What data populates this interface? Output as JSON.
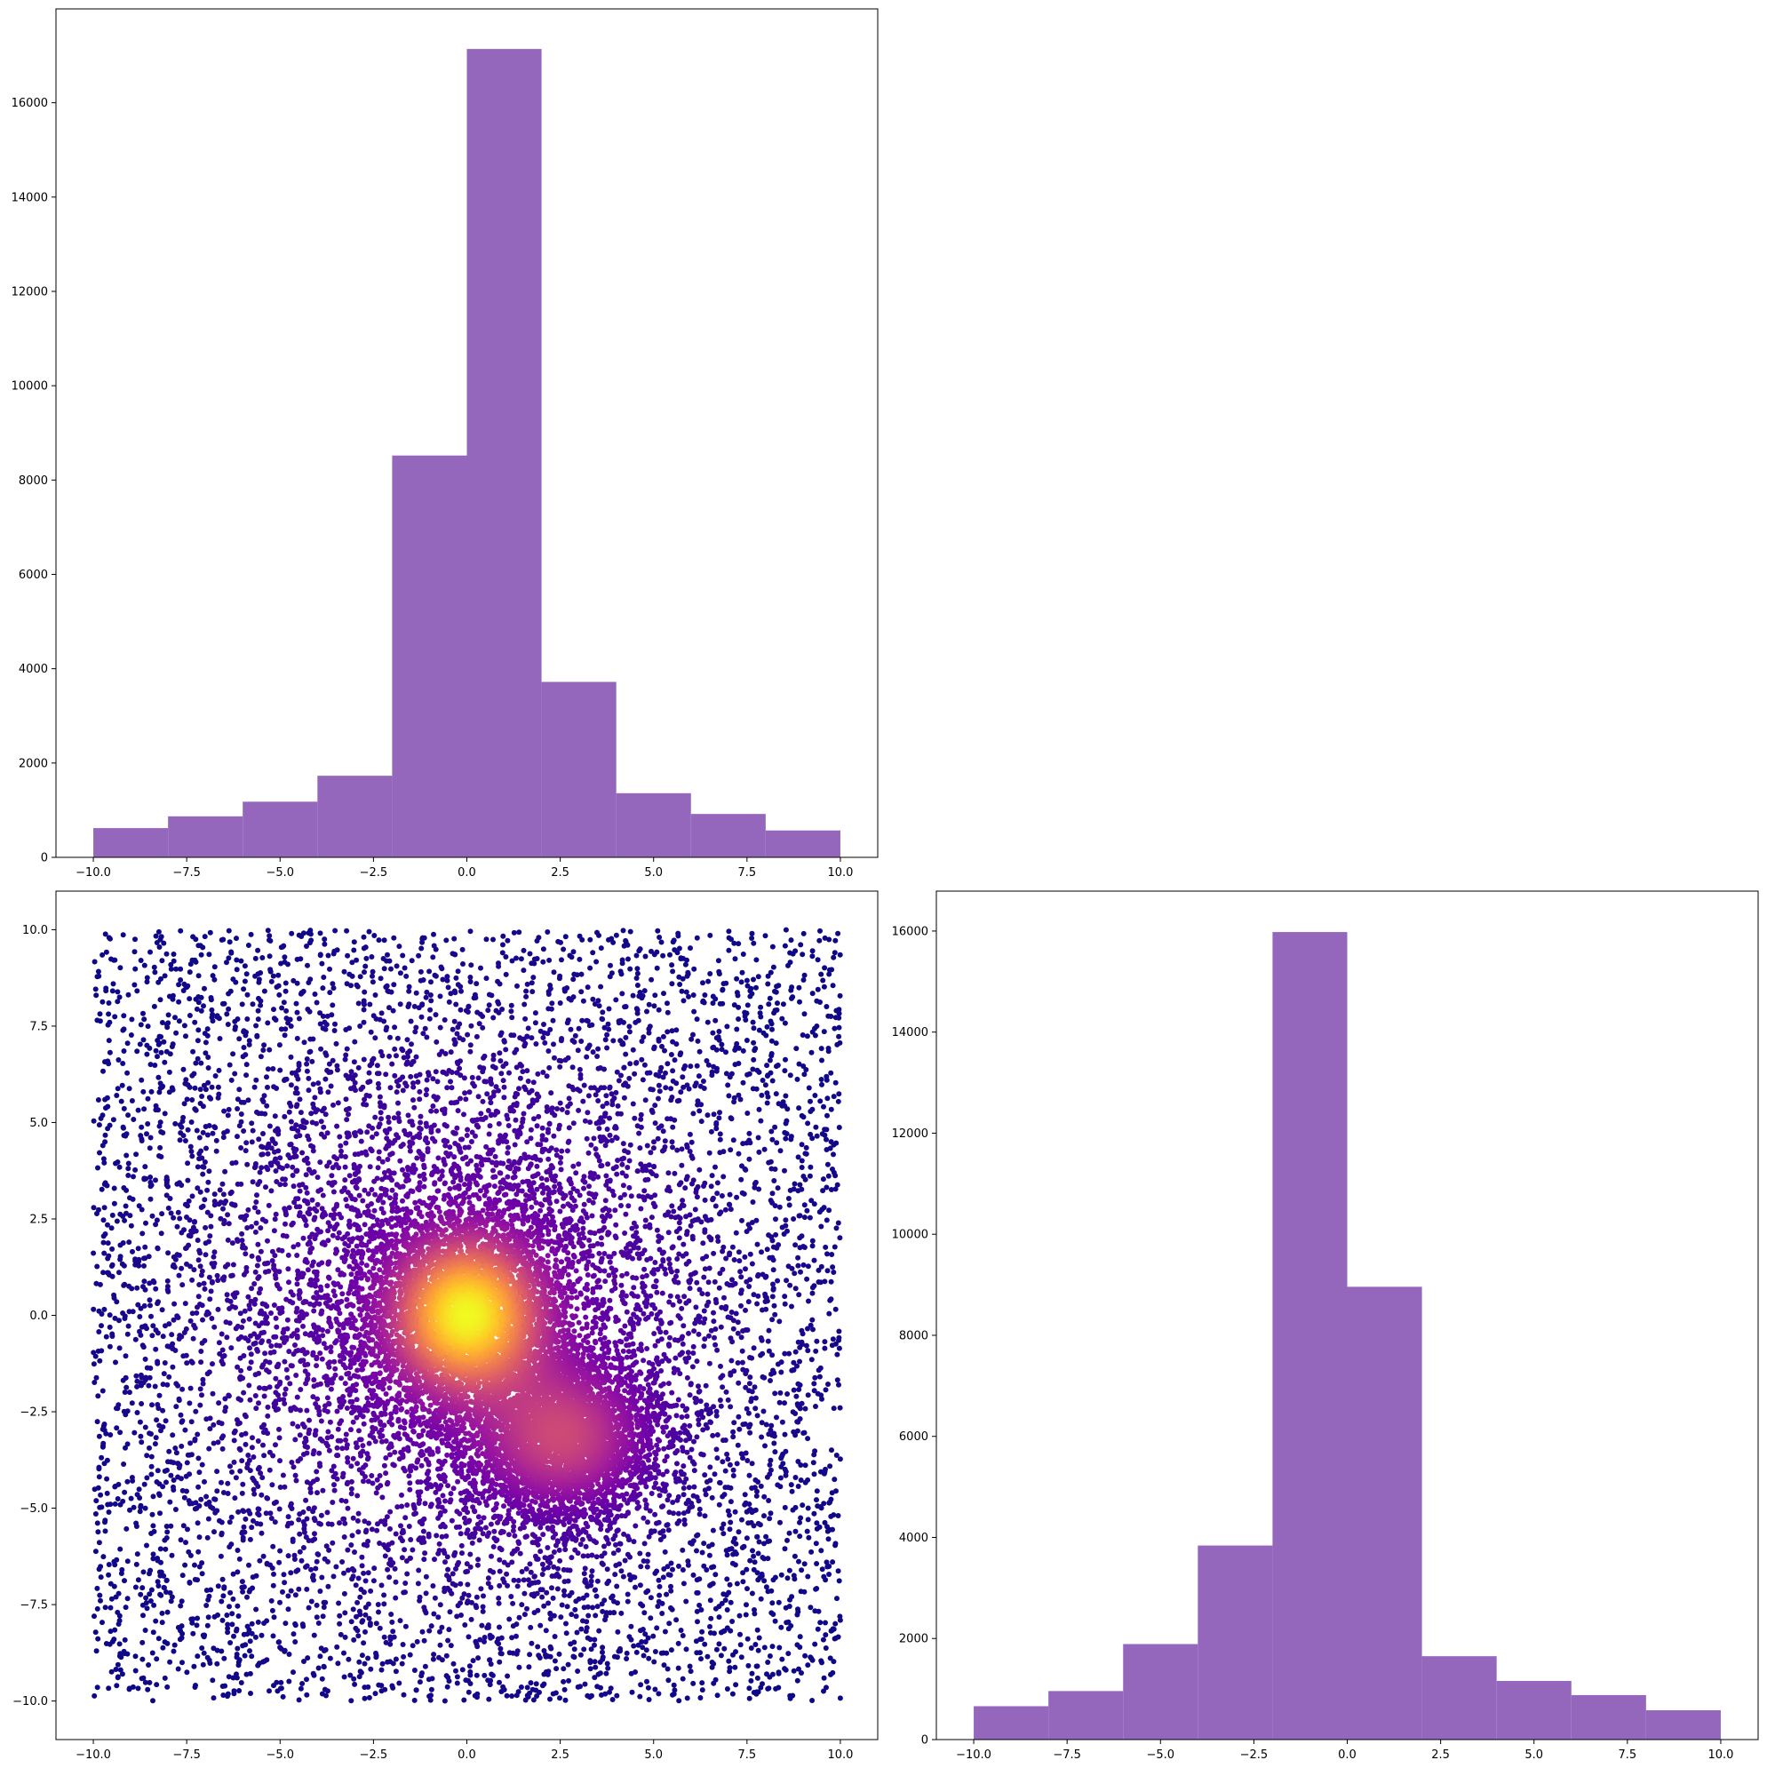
{
  "figure": {
    "layout": "corner plot, 2x2 grid, top-right panel empty"
  },
  "colors": {
    "hist_fill": "#9467bd",
    "scatter_colormap": [
      "#0d0887",
      "#46039f",
      "#7201a8",
      "#9c179e",
      "#bd3786",
      "#d8576b",
      "#ed7953",
      "#fb9f3a",
      "#fdca26",
      "#f0f921"
    ]
  },
  "chart_data": [
    {
      "name": "",
      "type": "bar",
      "panel": "top-left",
      "bin_edges": [
        -10,
        -8,
        -6,
        -4,
        -2,
        0,
        2,
        4,
        6,
        8,
        10
      ],
      "values": [
        620,
        870,
        1180,
        1730,
        8520,
        17140,
        3720,
        1360,
        920,
        570
      ],
      "xlim": [
        -11,
        11
      ],
      "ylim": [
        0,
        17990
      ],
      "xticks": [
        -10,
        -7.5,
        -5,
        -2.5,
        0,
        2.5,
        5,
        7.5,
        10
      ],
      "xtick_labels": [
        "−10.0",
        "−7.5",
        "−5.0",
        "−2.5",
        "0.0",
        "2.5",
        "5.0",
        "7.5",
        "10.0"
      ],
      "yticks": [
        0,
        2000,
        4000,
        6000,
        8000,
        10000,
        12000,
        14000,
        16000
      ],
      "ytick_labels": [
        "0",
        "2000",
        "4000",
        "6000",
        "8000",
        "10000",
        "12000",
        "14000",
        "16000"
      ],
      "title": "",
      "xlabel": "",
      "ylabel": "",
      "grid": false
    },
    {
      "name": "",
      "type": "scatter",
      "panel": "bottom-left",
      "description_of_generation": "",
      "components": [
        {
          "kind": "uniform",
          "count": 6000,
          "xrange": [
            -10,
            10
          ],
          "yrange": [
            -10,
            10
          ]
        },
        {
          "kind": "gaussian",
          "count": 4500,
          "center": [
            0,
            0
          ],
          "sigma": 1.4
        },
        {
          "kind": "gaussian",
          "count": 3500,
          "center": [
            2.6,
            -3.2
          ],
          "sigma": [
            1.3,
            1.1
          ]
        },
        {
          "kind": "gaussian",
          "count": 2500,
          "center": [
            0,
            0
          ],
          "sigma": 3.4
        }
      ],
      "color_by": "density",
      "colormap": "plasma",
      "marker_size": 3,
      "xlim": [
        -11,
        11
      ],
      "ylim": [
        -11,
        11
      ],
      "xticks": [
        -10,
        -7.5,
        -5,
        -2.5,
        0,
        2.5,
        5,
        7.5,
        10
      ],
      "xtick_labels": [
        "−10.0",
        "−7.5",
        "−5.0",
        "−2.5",
        "0.0",
        "2.5",
        "5.0",
        "7.5",
        "10.0"
      ],
      "yticks": [
        -10,
        -7.5,
        -5,
        -2.5,
        0,
        2.5,
        5,
        7.5,
        10
      ],
      "ytick_labels": [
        "−10.0",
        "−7.5",
        "−5.0",
        "−2.5",
        "0.0",
        "2.5",
        "5.0",
        "7.5",
        "10.0"
      ],
      "title": "",
      "xlabel": "",
      "ylabel": "",
      "grid": false
    },
    {
      "name": "",
      "type": "bar",
      "panel": "bottom-right",
      "bin_edges": [
        -10,
        -8,
        -6,
        -4,
        -2,
        0,
        2,
        4,
        6,
        8,
        10
      ],
      "values": [
        660,
        960,
        1890,
        3840,
        15980,
        8960,
        1650,
        1160,
        880,
        580
      ],
      "xlim": [
        -11,
        11
      ],
      "ylim": [
        0,
        16790
      ],
      "xticks": [
        -10,
        -7.5,
        -5,
        -2.5,
        0,
        2.5,
        5,
        7.5,
        10
      ],
      "xtick_labels": [
        "−10.0",
        "−7.5",
        "−5.0",
        "−2.5",
        "0.0",
        "2.5",
        "5.0",
        "7.5",
        "10.0"
      ],
      "yticks": [
        0,
        2000,
        4000,
        6000,
        8000,
        10000,
        12000,
        14000,
        16000
      ],
      "ytick_labels": [
        "0",
        "2000",
        "4000",
        "6000",
        "8000",
        "10000",
        "12000",
        "14000",
        "16000"
      ],
      "title": "",
      "xlabel": "",
      "ylabel": "",
      "grid": false
    }
  ]
}
